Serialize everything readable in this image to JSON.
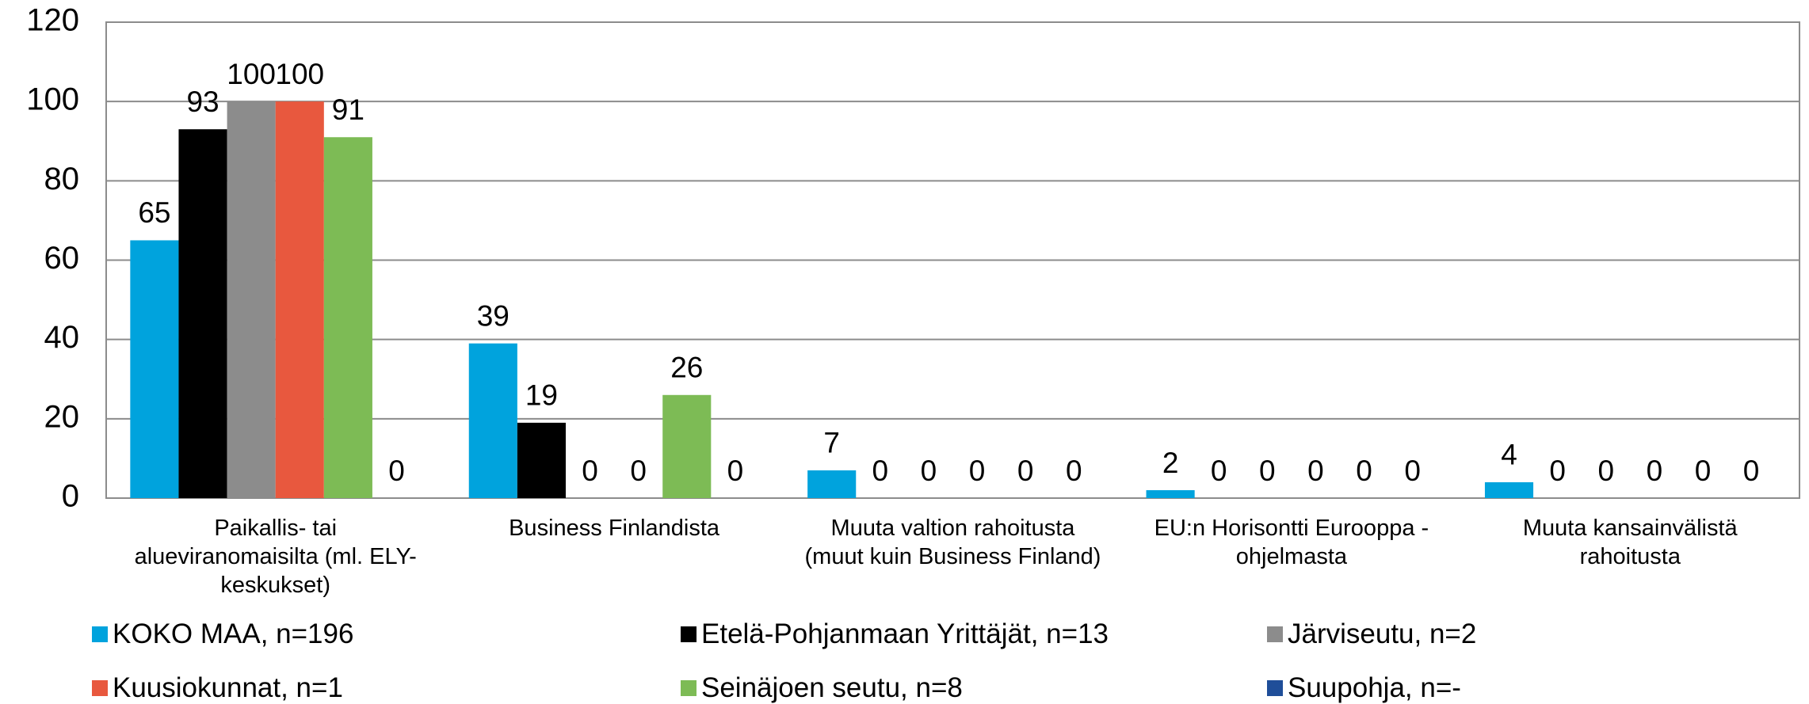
{
  "chart_data": {
    "type": "bar",
    "categories": [
      "Paikallis- tai alueviranomaisilta (ml. ELY-keskukset)",
      "Business Finlandista",
      "Muuta valtion rahoitusta (muut kuin Business Finland)",
      "EU:n Horisontti Eurooppa -ohjelmasta",
      "Muuta kansainvälistä rahoitusta"
    ],
    "series": [
      {
        "name": "KOKO MAA, n=196",
        "color": "#00a3dd",
        "values": [
          65,
          39,
          7,
          2,
          4
        ]
      },
      {
        "name": "Etelä-Pohjanmaan Yrittäjät, n=13",
        "color": "#000000",
        "values": [
          93,
          19,
          0,
          0,
          0
        ]
      },
      {
        "name": "Järviseutu, n=2",
        "color": "#8c8c8c",
        "values": [
          100,
          0,
          0,
          0,
          0
        ]
      },
      {
        "name": "Kuusiokunnat, n=1",
        "color": "#e8583e",
        "values": [
          100,
          0,
          0,
          0,
          0
        ]
      },
      {
        "name": "Seinäjoen seutu, n=8",
        "color": "#7dbb55",
        "values": [
          91,
          26,
          0,
          0,
          0
        ]
      },
      {
        "name": "Suupohja, n=-",
        "color": "#1f4e99",
        "values": [
          0,
          0,
          0,
          0,
          0
        ]
      }
    ],
    "ylim": [
      0,
      120
    ],
    "yticks": [
      0,
      20,
      40,
      60,
      80,
      100,
      120
    ],
    "grid": true,
    "legend": "bottom"
  }
}
